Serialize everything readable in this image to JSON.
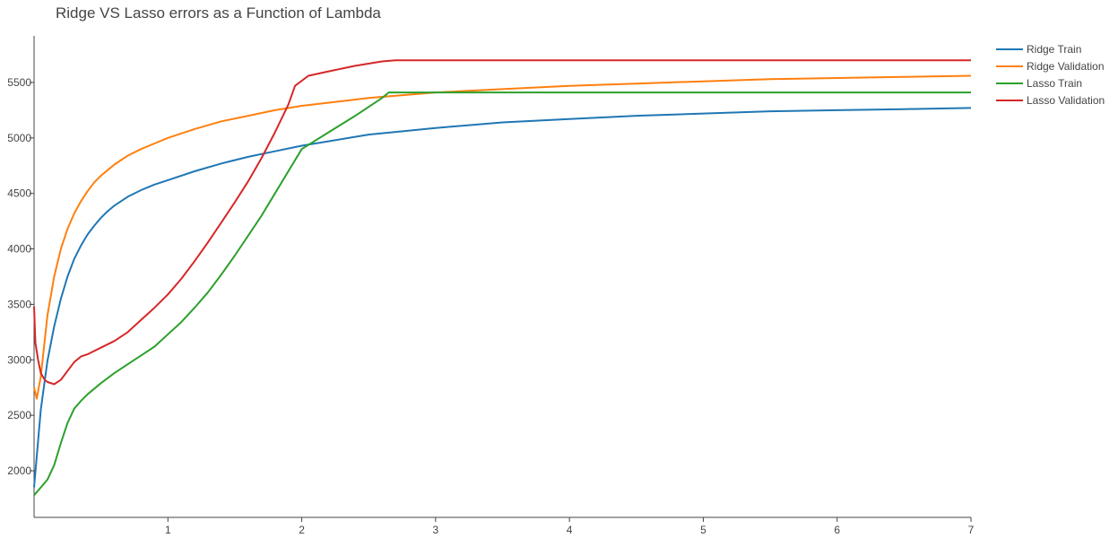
{
  "chart_data": {
    "type": "line",
    "title": "Ridge VS Lasso errors as a Function of Lambda",
    "xlabel": "",
    "ylabel": "",
    "xlim": [
      0,
      7
    ],
    "ylim": [
      1580,
      5920
    ],
    "x_ticks": [
      "1",
      "2",
      "3",
      "4",
      "5",
      "6",
      "7"
    ],
    "y_ticks": [
      "2000",
      "2500",
      "3000",
      "3500",
      "4000",
      "4500",
      "5000",
      "5500"
    ],
    "grid": false,
    "legend_position": "top-right",
    "series": [
      {
        "name": "Ridge Train",
        "color": "#1f77b4",
        "x": [
          0,
          0.05,
          0.1,
          0.15,
          0.2,
          0.25,
          0.3,
          0.35,
          0.4,
          0.45,
          0.5,
          0.55,
          0.6,
          0.7,
          0.8,
          0.9,
          1.0,
          1.2,
          1.4,
          1.6,
          1.8,
          2.0,
          2.5,
          3.0,
          3.5,
          4.0,
          4.5,
          5.0,
          5.5,
          6.0,
          6.5,
          7.0
        ],
        "y": [
          1850,
          2550,
          2990,
          3300,
          3550,
          3750,
          3910,
          4030,
          4130,
          4210,
          4280,
          4340,
          4390,
          4470,
          4530,
          4580,
          4620,
          4700,
          4770,
          4830,
          4880,
          4930,
          5030,
          5090,
          5140,
          5170,
          5200,
          5220,
          5240,
          5250,
          5260,
          5270
        ]
      },
      {
        "name": "Ridge Validation",
        "color": "#ff7f0e",
        "x": [
          0,
          0.02,
          0.05,
          0.1,
          0.15,
          0.2,
          0.25,
          0.3,
          0.35,
          0.4,
          0.45,
          0.5,
          0.55,
          0.6,
          0.7,
          0.8,
          0.9,
          1.0,
          1.2,
          1.4,
          1.6,
          1.8,
          2.0,
          2.5,
          3.0,
          3.5,
          4.0,
          4.5,
          5.0,
          5.5,
          6.0,
          6.5,
          7.0
        ],
        "y": [
          2750,
          2650,
          2850,
          3400,
          3750,
          4000,
          4180,
          4320,
          4430,
          4520,
          4600,
          4660,
          4710,
          4760,
          4840,
          4900,
          4950,
          5000,
          5080,
          5150,
          5200,
          5250,
          5290,
          5360,
          5410,
          5440,
          5470,
          5490,
          5510,
          5530,
          5540,
          5550,
          5560
        ]
      },
      {
        "name": "Lasso Train",
        "color": "#2ca02c",
        "x": [
          0,
          0.05,
          0.1,
          0.15,
          0.2,
          0.25,
          0.3,
          0.35,
          0.4,
          0.5,
          0.6,
          0.7,
          0.8,
          0.9,
          1.0,
          1.1,
          1.2,
          1.3,
          1.4,
          1.5,
          1.6,
          1.7,
          1.8,
          1.9,
          2.0,
          2.2,
          2.4,
          2.6,
          2.65,
          3.0,
          4.0,
          5.0,
          6.0,
          7.0
        ],
        "y": [
          1780,
          1850,
          1920,
          2050,
          2250,
          2430,
          2560,
          2630,
          2690,
          2790,
          2880,
          2960,
          3040,
          3120,
          3230,
          3340,
          3470,
          3610,
          3770,
          3940,
          4120,
          4300,
          4500,
          4700,
          4900,
          5050,
          5200,
          5360,
          5410,
          5410,
          5410,
          5410,
          5410,
          5410
        ]
      },
      {
        "name": "Lasso Validation",
        "color": "#d62728",
        "x": [
          0,
          0.01,
          0.03,
          0.05,
          0.08,
          0.1,
          0.15,
          0.2,
          0.25,
          0.3,
          0.35,
          0.4,
          0.45,
          0.5,
          0.6,
          0.7,
          0.8,
          0.9,
          1.0,
          1.1,
          1.2,
          1.3,
          1.4,
          1.5,
          1.6,
          1.7,
          1.8,
          1.9,
          1.95,
          2.05,
          2.2,
          2.4,
          2.6,
          2.7,
          3.0,
          4.0,
          5.0,
          6.0,
          7.0
        ],
        "y": [
          3480,
          3150,
          3000,
          2880,
          2820,
          2800,
          2780,
          2820,
          2900,
          2980,
          3030,
          3050,
          3080,
          3110,
          3170,
          3250,
          3360,
          3470,
          3590,
          3730,
          3890,
          4060,
          4240,
          4420,
          4610,
          4820,
          5050,
          5300,
          5470,
          5560,
          5600,
          5650,
          5690,
          5700,
          5700,
          5700,
          5700,
          5700,
          5700
        ]
      }
    ]
  }
}
